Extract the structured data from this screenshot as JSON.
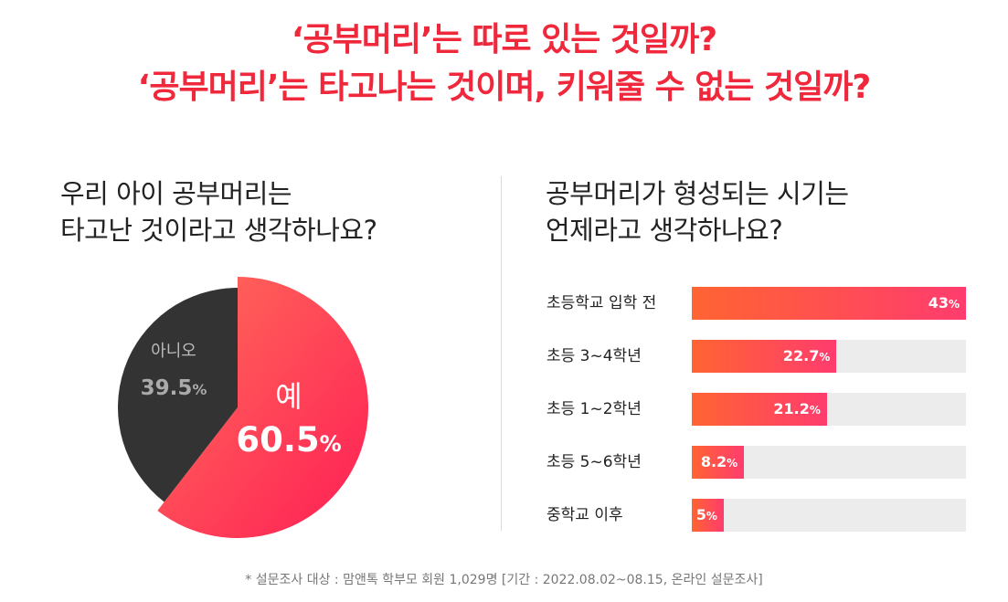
{
  "headline": {
    "line1": "‘공부머리’는 따로 있는 것일까?",
    "line2": "‘공부머리’는 타고나는 것이며, 키워줄 수 없는 것일까?"
  },
  "left_question": {
    "line1": "우리 아이 공부머리는",
    "line2": "타고난 것이라고 생각하나요?"
  },
  "right_question": {
    "line1": "공부머리가 형성되는 시기는",
    "line2": "언제라고 생각하나요?"
  },
  "footnote": "* 설문조사 대상 : 맘앤톡 학부모 회원 1,029명 [기간 : 2022.08.02~08.15, 온라인 설문조사]",
  "colors": {
    "headline": "#f0283c",
    "pie_no": "#333333",
    "gradient_start": "#ff6432",
    "gradient_end": "#ff2a55",
    "bar_track": "#ececec"
  },
  "chart_data": [
    {
      "type": "pie",
      "slices": [
        {
          "label": "예",
          "value": 60.5,
          "display": "60.5",
          "unit": "%"
        },
        {
          "label": "아니오",
          "value": 39.5,
          "display": "39.5",
          "unit": "%"
        }
      ]
    },
    {
      "type": "bar",
      "orientation": "horizontal",
      "categories": [
        "초등학교 입학 전",
        "초등 3~4학년",
        "초등 1~2학년",
        "초등 5~6학년",
        "중학교 이후"
      ],
      "values": [
        43,
        22.7,
        21.2,
        8.2,
        5
      ],
      "value_labels": [
        "43",
        "22.7",
        "21.2",
        "8.2",
        "5"
      ],
      "unit": "%",
      "xlim": [
        0,
        43
      ]
    }
  ]
}
